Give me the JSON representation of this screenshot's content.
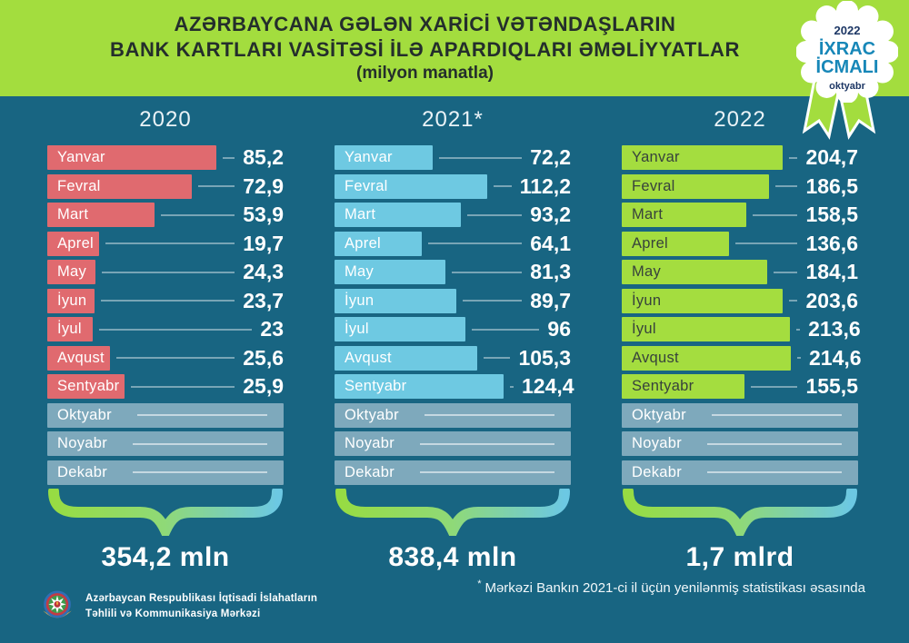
{
  "header": {
    "title_line1": "AZƏRBAYCANA GƏLƏN XARİCİ VƏTƏNDAŞLARIN",
    "title_line2": "BANK KARTLARI VASİTƏSİ İLƏ APARDIQLARI ƏMƏLİYYATLAR",
    "subtitle": "(milyon manatla)"
  },
  "badge": {
    "year": "2022",
    "word1": "İXRAC",
    "word2": "İCMALI",
    "month": "oktyabr"
  },
  "footnote": {
    "mark": "*",
    "text": "Mərkəzi Bankın 2021-ci il üçün yenilənmiş statistikası əsasında"
  },
  "footer": {
    "org_line1": "Azərbaycan Respublikası İqtisadi İslahatların",
    "org_line2": "Təhlili və Kommunikasiya Mərkəzi"
  },
  "colors": {
    "background": "#186582",
    "header_band": "#a3dd3e",
    "bar_2020": "#e06a6f",
    "bar_2021": "#6ec9e2",
    "bar_2022": "#a4dd3f",
    "bar_pending": "#7ea9bc",
    "badge_navy": "#1d3765",
    "badge_teal": "#1787b8",
    "brace_green": "#97dc43",
    "brace_blue": "#6cc8e3"
  },
  "chart_data": {
    "type": "bar",
    "orientation": "horizontal",
    "unit": "milyon manat",
    "title": "AZƏRBAYCANA GƏLƏN XARİCİ VƏTƏNDAŞLARIN BANK KARTLARI VASİTƏSİ İLƏ APARDIQLARI ƏMƏLİYYATLAR (milyon manatla)",
    "categories": [
      "Yanvar",
      "Fevral",
      "Mart",
      "Aprel",
      "May",
      "İyun",
      "İyul",
      "Avqust",
      "Sentyabr",
      "Oktyabr",
      "Noyabr",
      "Dekabr"
    ],
    "pending_months": [
      "Oktyabr",
      "Noyabr",
      "Dekabr"
    ],
    "series": [
      {
        "name": "2020",
        "color": "#e06a6f",
        "label_color": "#ffffff",
        "values": [
          85.2,
          72.9,
          53.9,
          19.7,
          24.3,
          23.7,
          23,
          25.6,
          25.9,
          null,
          null,
          null
        ],
        "value_labels": [
          "85,2",
          "72,9",
          "53,9",
          "19,7",
          "24,3",
          "23,7",
          "23",
          "25,6",
          "25,9"
        ],
        "total_label": "354,2 mln"
      },
      {
        "name": "2021*",
        "color": "#6ec9e2",
        "label_color": "#ffffff",
        "values": [
          72.2,
          112.2,
          93.2,
          64.1,
          81.3,
          89.7,
          96,
          105.3,
          124.4,
          null,
          null,
          null
        ],
        "value_labels": [
          "72,2",
          "112,2",
          "93,2",
          "64,1",
          "81,3",
          "89,7",
          "96",
          "105,3",
          "124,4"
        ],
        "total_label": "838,4 mln"
      },
      {
        "name": "2022",
        "color": "#a4dd3f",
        "label_color": "#37423c",
        "values": [
          204.7,
          186.5,
          158.5,
          136.6,
          184.1,
          203.6,
          213.6,
          214.6,
          155.5,
          null,
          null,
          null
        ],
        "value_labels": [
          "204,7",
          "186,5",
          "158,5",
          "136,6",
          "184,1",
          "203,6",
          "213,6",
          "214,6",
          "155,5"
        ],
        "total_label": "1,7 mlrd"
      }
    ]
  }
}
